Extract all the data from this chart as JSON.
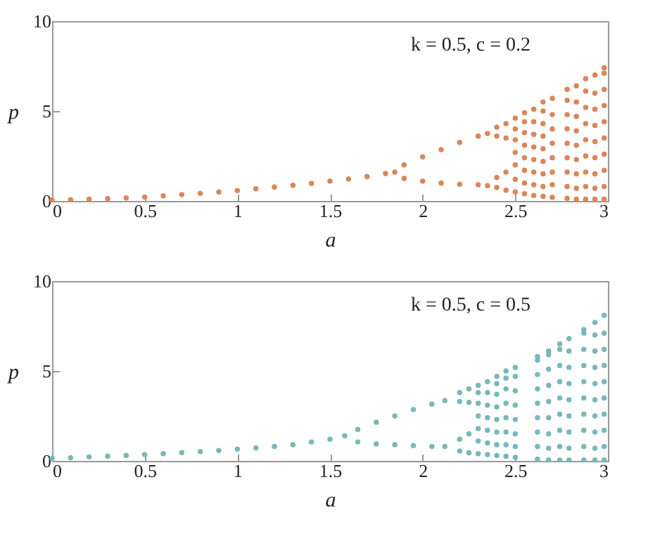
{
  "chart_data": [
    {
      "type": "scatter",
      "xlabel": "a",
      "ylabel": "p",
      "annotations": [
        "k = 0.5, c = 0.2"
      ],
      "xlim": [
        0,
        3
      ],
      "xticks": [
        0,
        0.5,
        1,
        1.5,
        2,
        2.5,
        3
      ],
      "ylim": [
        0,
        10
      ],
      "yticks": [
        0,
        5,
        10
      ],
      "marker": "circle",
      "series": [
        {
          "color": "#d9865a",
          "x": [
            0,
            0.1,
            0.2,
            0.3,
            0.4,
            0.5,
            0.6,
            0.7,
            0.8,
            0.9,
            1,
            1.1,
            1.2,
            1.3,
            1.4,
            1.5,
            1.6,
            1.7,
            1.8,
            1.85,
            1.9,
            2.0,
            2.1,
            2.2,
            2.3,
            2.35,
            1.9,
            2.0,
            2.1,
            2.2,
            2.3,
            2.35,
            2.4,
            2.4,
            2.4,
            2.4,
            2.45,
            2.45,
            2.45,
            2.45,
            2.5,
            2.5,
            2.5,
            2.5,
            2.5,
            2.5,
            2.5,
            2.55,
            2.55,
            2.55,
            2.55,
            2.55,
            2.55,
            2.55,
            2.55,
            2.6,
            2.6,
            2.6,
            2.6,
            2.6,
            2.6,
            2.6,
            2.6,
            2.65,
            2.65,
            2.65,
            2.65,
            2.65,
            2.65,
            2.65,
            2.65,
            2.65,
            2.7,
            2.7,
            2.7,
            2.7,
            2.7,
            2.7,
            2.7,
            2.7,
            2.78,
            2.78,
            2.78,
            2.78,
            2.78,
            2.78,
            2.78,
            2.78,
            2.78,
            2.83,
            2.83,
            2.83,
            2.83,
            2.83,
            2.83,
            2.83,
            2.83,
            2.83,
            2.88,
            2.88,
            2.88,
            2.88,
            2.88,
            2.88,
            2.88,
            2.88,
            2.88,
            2.93,
            2.93,
            2.93,
            2.93,
            2.93,
            2.93,
            2.93,
            2.93,
            2.93,
            2.98,
            2.98,
            2.98,
            2.98,
            2.98,
            2.98,
            2.98,
            2.98,
            2.98,
            2.98
          ],
          "values": [
            0.05,
            0.07,
            0.1,
            0.13,
            0.17,
            0.22,
            0.28,
            0.35,
            0.42,
            0.5,
            0.58,
            0.67,
            0.77,
            0.87,
            0.98,
            1.1,
            1.22,
            1.36,
            1.52,
            1.6,
            2.0,
            2.45,
            2.85,
            3.25,
            3.6,
            3.75,
            1.25,
            1.1,
            1.0,
            0.93,
            0.9,
            0.85,
            4.1,
            3.6,
            1.3,
            0.75,
            4.3,
            3.5,
            1.6,
            0.6,
            0.5,
            1.2,
            2.0,
            2.7,
            3.4,
            4.0,
            4.6,
            0.4,
            1.0,
            1.7,
            2.4,
            3.1,
            3.8,
            4.4,
            4.9,
            0.3,
            0.9,
            1.6,
            2.3,
            3.0,
            3.7,
            4.4,
            5.1,
            0.25,
            0.8,
            1.5,
            2.2,
            2.9,
            3.6,
            4.3,
            5.0,
            5.5,
            0.2,
            0.9,
            1.6,
            2.4,
            3.2,
            4.0,
            4.8,
            5.7,
            0.15,
            0.8,
            1.6,
            2.4,
            3.2,
            4.0,
            4.8,
            5.6,
            6.2,
            0.1,
            0.7,
            1.5,
            2.3,
            3.1,
            3.9,
            4.7,
            5.5,
            6.4,
            0.1,
            0.8,
            1.6,
            2.5,
            3.4,
            4.3,
            5.2,
            6.1,
            6.8,
            0.1,
            0.7,
            1.5,
            2.4,
            3.3,
            4.2,
            5.1,
            6.0,
            7.0,
            0.1,
            0.8,
            1.7,
            2.6,
            3.5,
            4.4,
            5.3,
            6.2,
            7.1,
            7.4
          ]
        }
      ]
    },
    {
      "type": "scatter",
      "xlabel": "a",
      "ylabel": "p",
      "annotations": [
        "k = 0.5, c = 0.5"
      ],
      "xlim": [
        0,
        3
      ],
      "xticks": [
        0,
        0.5,
        1,
        1.5,
        2,
        2.5,
        3
      ],
      "ylim": [
        0,
        10
      ],
      "yticks": [
        0,
        5,
        10
      ],
      "marker": "circle",
      "series": [
        {
          "color": "#7ab8b8",
          "x": [
            0,
            0.1,
            0.2,
            0.3,
            0.4,
            0.5,
            0.6,
            0.7,
            0.8,
            0.9,
            1,
            1.1,
            1.2,
            1.3,
            1.4,
            1.5,
            1.58,
            1.65,
            1.75,
            1.85,
            1.95,
            2.05,
            2.12,
            1.65,
            1.75,
            1.85,
            1.95,
            2.05,
            2.12,
            2.2,
            2.2,
            2.2,
            2.2,
            2.25,
            2.25,
            2.25,
            2.25,
            2.3,
            2.3,
            2.3,
            2.3,
            2.3,
            2.3,
            2.3,
            2.35,
            2.35,
            2.35,
            2.35,
            2.35,
            2.35,
            2.35,
            2.4,
            2.4,
            2.4,
            2.4,
            2.4,
            2.4,
            2.4,
            2.4,
            2.45,
            2.45,
            2.45,
            2.45,
            2.45,
            2.45,
            2.45,
            2.45,
            2.5,
            2.5,
            2.5,
            2.5,
            2.5,
            2.5,
            2.5,
            2.5,
            2.62,
            2.62,
            2.62,
            2.62,
            2.62,
            2.62,
            2.62,
            2.62,
            2.62,
            2.68,
            2.68,
            2.68,
            2.68,
            2.68,
            2.68,
            2.68,
            2.68,
            2.68,
            2.74,
            2.74,
            2.74,
            2.74,
            2.74,
            2.74,
            2.74,
            2.74,
            2.74,
            2.79,
            2.79,
            2.79,
            2.79,
            2.79,
            2.79,
            2.79,
            2.79,
            2.79,
            2.87,
            2.87,
            2.87,
            2.87,
            2.87,
            2.87,
            2.87,
            2.87,
            2.87,
            2.87,
            2.93,
            2.93,
            2.93,
            2.93,
            2.93,
            2.93,
            2.93,
            2.93,
            2.93,
            2.93,
            2.98,
            2.98,
            2.98,
            2.98,
            2.98,
            2.98,
            2.98,
            2.98,
            2.98,
            2.98
          ],
          "values": [
            0.15,
            0.18,
            0.22,
            0.26,
            0.3,
            0.35,
            0.4,
            0.46,
            0.52,
            0.58,
            0.65,
            0.72,
            0.8,
            0.9,
            1.05,
            1.2,
            1.4,
            1.75,
            2.15,
            2.5,
            2.85,
            3.15,
            3.35,
            1.05,
            0.95,
            0.9,
            0.85,
            0.8,
            0.8,
            3.8,
            3.3,
            1.2,
            0.55,
            4.0,
            3.25,
            1.5,
            0.45,
            0.4,
            1.1,
            1.8,
            2.5,
            3.2,
            3.8,
            4.2,
            0.35,
            1.0,
            1.7,
            2.4,
            3.1,
            3.8,
            4.4,
            0.3,
            0.9,
            1.6,
            2.3,
            3.0,
            3.7,
            4.3,
            4.7,
            0.25,
            0.9,
            1.6,
            2.4,
            3.2,
            4.0,
            4.6,
            5.0,
            0.2,
            0.8,
            1.5,
            2.3,
            3.1,
            3.9,
            4.7,
            5.2,
            0.1,
            0.8,
            1.6,
            2.4,
            3.2,
            4.0,
            4.8,
            5.6,
            5.8,
            0.05,
            0.7,
            1.5,
            2.4,
            3.3,
            4.2,
            5.1,
            5.9,
            6.1,
            0.05,
            0.8,
            1.7,
            2.6,
            3.5,
            4.4,
            5.3,
            6.2,
            6.5,
            0.05,
            0.7,
            1.6,
            2.5,
            3.4,
            4.3,
            5.2,
            6.1,
            6.8,
            0.05,
            0.8,
            1.7,
            2.6,
            3.5,
            4.4,
            5.3,
            6.2,
            7.1,
            7.3,
            0.05,
            0.7,
            1.6,
            2.5,
            3.4,
            4.3,
            5.2,
            6.1,
            7.0,
            7.7,
            0.05,
            0.8,
            1.7,
            2.6,
            3.5,
            4.4,
            5.3,
            6.2,
            7.1,
            8.1
          ]
        }
      ]
    }
  ]
}
